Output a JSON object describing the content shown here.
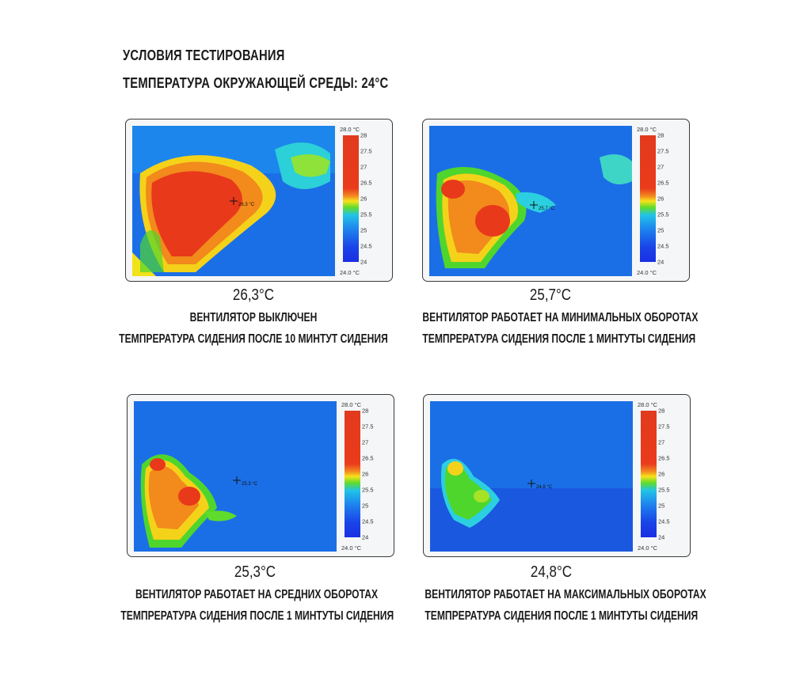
{
  "header": {
    "line1": "УСЛОВИЯ ТЕСТИРОВАНИЯ",
    "line2": "ТЕМПЕРАТУРА ОКРУЖАЮЩЕЙ СРЕДЫ: 24°С"
  },
  "scale": {
    "top": "28.0 °C",
    "bottom": "24.0 °C",
    "ticks": [
      "28",
      "27.5",
      "27",
      "26.5",
      "26",
      "25.5",
      "25",
      "24.5",
      "24"
    ]
  },
  "panels": [
    {
      "value": "26,3°С",
      "line1": "ВЕНТИЛЯТОР ВЫКЛЮЧЕН",
      "line2": "ТЕМПРЕРАТУРА СИДЕНИЯ ПОСЛЕ 10 МИНТУТ СИДЕНИЯ",
      "marker": "26.3 °C"
    },
    {
      "value": "25,7°С",
      "line1": "ВЕНТИЛЯТОР РАБОТАЕТ НА МИНИМАЛЬНЫХ ОБОРОТАХ",
      "line2": "ТЕМПРЕРАТУРА СИДЕНИЯ ПОСЛЕ 1 МИНТУТЫ СИДЕНИЯ",
      "marker": "25.7 °C"
    },
    {
      "value": "25,3°С",
      "line1": "ВЕНТИЛЯТОР РАБОТАЕТ НА СРЕДНИХ ОБОРОТАХ",
      "line2": "ТЕМПРЕРАТУРА СИДЕНИЯ ПОСЛЕ 1 МИНТУТЫ СИДЕНИЯ",
      "marker": "25.3 °C"
    },
    {
      "value": "24,8°С",
      "line1": "ВЕНТИЛЯТОР РАБОТАЕТ НА МАКСИМАЛЬНЫХ ОБОРОТАХ",
      "line2": "ТЕМПРЕРАТУРА СИДЕНИЯ ПОСЛЕ 1 МИНТУТЫ СИДЕНИЯ",
      "marker": "24.8 °C"
    }
  ],
  "colors": {
    "hot": "#e8391b",
    "warm": "#f7a21d",
    "mid": "#f2e21a",
    "green": "#4fd62c",
    "cyan": "#1fc6e8",
    "cool": "#1b7bea"
  }
}
